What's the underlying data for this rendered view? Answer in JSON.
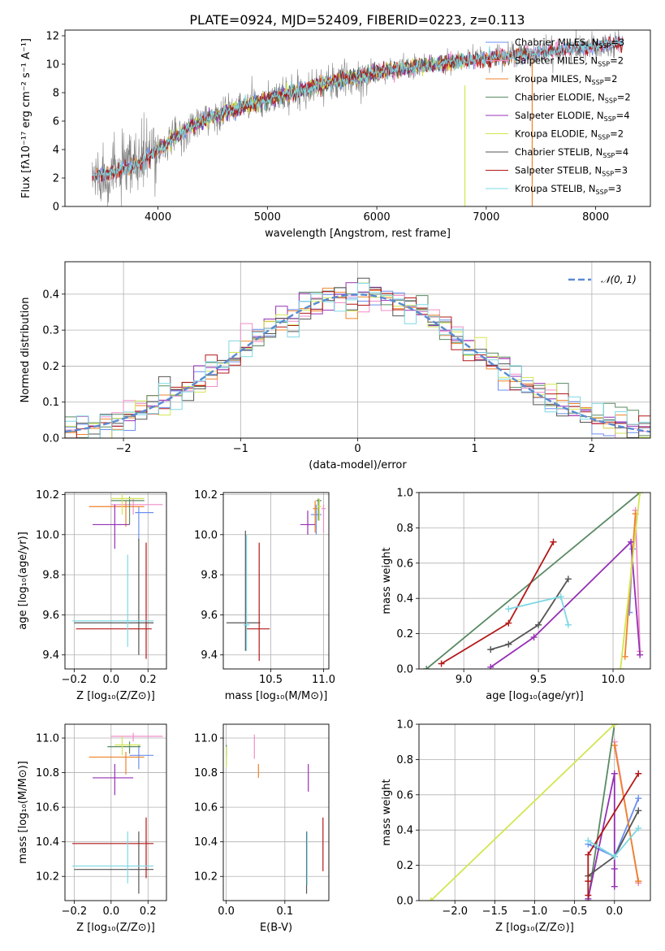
{
  "figure": {
    "title": "PLATE=0924, MJD=52409, FIBERID=0223, z=0.113"
  },
  "colors": {
    "Chabrier MILES": "#6a8ff0",
    "Salpeter MILES": "#f08cc8",
    "Kroupa MILES": "#f08228",
    "Chabrier ELODIE": "#5a8a64",
    "Salpeter ELODIE": "#9630b4",
    "Kroupa ELODIE": "#d2e650",
    "Chabrier STELIB": "#555555",
    "Salpeter STELIB": "#b41818",
    "Kroupa STELIB": "#7ed8e4",
    "data": "#808080",
    "normal": "#5a8ad2",
    "grid": "#b0b0b0"
  },
  "chart_data": [
    {
      "id": "spectrum",
      "type": "line",
      "title": "PLATE=0924, MJD=52409, FIBERID=0223, z=0.113",
      "xlabel": "wavelength [Angstrom, rest frame]",
      "ylabel": "Flux [fλ10⁻¹⁷ erg cm⁻² s⁻¹ A⁻¹]",
      "xlim": [
        3150,
        8500
      ],
      "ylim": [
        0,
        12.4
      ],
      "xticks": [
        4000,
        5000,
        6000,
        7000,
        8000
      ],
      "yticks": [
        0,
        2,
        4,
        6,
        8,
        10,
        12
      ],
      "grid": false,
      "legend_position": "right",
      "continuum_knots": {
        "x": [
          3400,
          3600,
          3800,
          4000,
          4300,
          4600,
          5000,
          5500,
          6000,
          6500,
          7000,
          7500,
          8000,
          8300
        ],
        "y": [
          2.1,
          2.4,
          2.9,
          4.0,
          5.6,
          6.6,
          7.5,
          8.6,
          9.4,
          10.0,
          10.4,
          10.8,
          11.3,
          11.6
        ]
      },
      "series": [
        {
          "name": "Chabrier MILES, N_SSP=3",
          "label": "Chabrier MILES, N",
          "sub": "SSP",
          "suffix": "=3",
          "color_key": "Chabrier MILES",
          "x_range": [
            3400,
            8250
          ]
        },
        {
          "name": "Salpeter MILES, N_SSP=2",
          "label": "Salpeter MILES, N",
          "sub": "SSP",
          "suffix": "=2",
          "color_key": "Salpeter MILES",
          "x_range": [
            3400,
            8250
          ]
        },
        {
          "name": "Kroupa MILES, N_SSP=2",
          "label": "Kroupa MILES, N",
          "sub": "SSP",
          "suffix": "=2",
          "color_key": "Kroupa MILES",
          "x_range": [
            3400,
            7420
          ]
        },
        {
          "name": "Chabrier ELODIE, N_SSP=2",
          "label": "Chabrier ELODIE, N",
          "sub": "SSP",
          "suffix": "=2",
          "color_key": "Chabrier ELODIE",
          "x_range": [
            4000,
            6800
          ]
        },
        {
          "name": "Salpeter ELODIE, N_SSP=4",
          "label": "Salpeter ELODIE, N",
          "sub": "SSP",
          "suffix": "=4",
          "color_key": "Salpeter ELODIE",
          "x_range": [
            4000,
            6800
          ]
        },
        {
          "name": "Kroupa ELODIE, N_SSP=2",
          "label": "Kroupa ELODIE, N",
          "sub": "SSP",
          "suffix": "=2",
          "color_key": "Kroupa ELODIE",
          "x_range": [
            4000,
            6800
          ]
        },
        {
          "name": "Chabrier STELIB, N_SSP=4",
          "label": "Chabrier STELIB, N",
          "sub": "SSP",
          "suffix": "=4",
          "color_key": "Chabrier STELIB",
          "x_range": [
            3400,
            8250
          ]
        },
        {
          "name": "Salpeter STELIB, N_SSP=3",
          "label": "Salpeter STELIB, N",
          "sub": "SSP",
          "suffix": "=3",
          "color_key": "Salpeter STELIB",
          "x_range": [
            3400,
            8250
          ]
        },
        {
          "name": "Kroupa STELIB, N_SSP=3",
          "label": "Kroupa STELIB, N",
          "sub": "SSP",
          "suffix": "=3",
          "color_key": "Kroupa STELIB",
          "x_range": [
            3400,
            8250
          ]
        }
      ]
    },
    {
      "id": "residuals",
      "type": "line",
      "xlabel": "(data-model)/error",
      "ylabel": "Normed distribution",
      "xlim": [
        -2.5,
        2.5
      ],
      "ylim": [
        0,
        0.49
      ],
      "xticks": [
        -2,
        -1,
        0,
        1,
        2
      ],
      "yticks": [
        0.0,
        0.1,
        0.2,
        0.3,
        0.4
      ],
      "grid": true,
      "legend_position": "top-right",
      "legend_label": "𝒩(0, 1)",
      "series_note": "nine step histograms, one per model, bin width 0.1"
    },
    {
      "id": "age-vs-z",
      "type": "scatter",
      "xlabel": "Z [log₁₀(Z/Z⊙)]",
      "ylabel": "age  [log₁₀(age/yr)]",
      "xlim": [
        -0.25,
        0.3
      ],
      "ylim": [
        9.33,
        10.21
      ],
      "xticks": [
        -0.2,
        0.0,
        0.2
      ],
      "yticks": [
        9.4,
        9.6,
        9.8,
        10.0,
        10.2
      ],
      "grid": true,
      "points": [
        {
          "model": "Chabrier MILES",
          "x": 0.15,
          "xerr": [
            0.02,
            0.08
          ],
          "y": 10.11,
          "yerr": [
            0.14,
            0.03
          ]
        },
        {
          "model": "Salpeter MILES",
          "x": 0.12,
          "xerr": [
            0.12,
            0.16
          ],
          "y": 10.15,
          "yerr": [
            0.05,
            0.03
          ]
        },
        {
          "model": "Kroupa MILES",
          "x": 0.08,
          "xerr": [
            0.2,
            0.1
          ],
          "y": 10.14,
          "yerr": [
            0.1,
            0.03
          ]
        },
        {
          "model": "Chabrier ELODIE",
          "x": 0.1,
          "xerr": [
            0.1,
            0.08
          ],
          "y": 10.17,
          "yerr": [
            0.12,
            0.02
          ]
        },
        {
          "model": "Salpeter ELODIE",
          "x": 0.02,
          "xerr": [
            0.12,
            0.08
          ],
          "y": 10.05,
          "yerr": [
            0.12,
            0.1
          ]
        },
        {
          "model": "Kroupa ELODIE",
          "x": 0.06,
          "xerr": [
            0.06,
            0.12
          ],
          "y": 10.18,
          "yerr": [
            0.08,
            0.02
          ]
        },
        {
          "model": "Chabrier STELIB",
          "x": 0.15,
          "xerr": [
            0.35,
            0.08
          ],
          "y": 9.56,
          "yerr": [
            0.16,
            0.42
          ]
        },
        {
          "model": "Salpeter STELIB",
          "x": 0.19,
          "xerr": [
            0.38,
            0.03
          ],
          "y": 9.53,
          "yerr": [
            0.15,
            0.43
          ]
        },
        {
          "model": "Kroupa STELIB",
          "x": 0.09,
          "xerr": [
            0.3,
            0.14
          ],
          "y": 9.57,
          "yerr": [
            0.13,
            0.33
          ]
        }
      ]
    },
    {
      "id": "age-vs-mass",
      "type": "scatter",
      "xlabel": "mass [log₁₀(M/M⊙)]",
      "ylabel": "",
      "xlim": [
        10.05,
        11.05
      ],
      "ylim": [
        9.33,
        10.21
      ],
      "xticks": [
        10.5,
        11.0
      ],
      "yticks": [
        9.4,
        9.6,
        9.8,
        10.0,
        10.2
      ],
      "grid": true,
      "points": [
        {
          "model": "Chabrier MILES",
          "x": 10.93,
          "xerr": [
            0.05,
            0.05
          ],
          "y": 10.1,
          "yerr": [
            0.1,
            0.05
          ]
        },
        {
          "model": "Salpeter MILES",
          "x": 11.0,
          "xerr": [
            0.02,
            0.02
          ],
          "y": 10.13,
          "yerr": [
            0.12,
            0.02
          ]
        },
        {
          "model": "Kroupa MILES",
          "x": 10.92,
          "xerr": [
            0.02,
            0.02
          ],
          "y": 10.13,
          "yerr": [
            0.12,
            0.04
          ]
        },
        {
          "model": "Chabrier ELODIE",
          "x": 10.95,
          "xerr": [
            0.02,
            0.03
          ],
          "y": 10.17,
          "yerr": [
            0.1,
            0.01
          ]
        },
        {
          "model": "Salpeter ELODIE",
          "x": 10.85,
          "xerr": [
            0.07,
            0.07
          ],
          "y": 10.05,
          "yerr": [
            0.05,
            0.07
          ]
        },
        {
          "model": "Kroupa ELODIE",
          "x": 10.96,
          "xerr": [
            0.02,
            0.02
          ],
          "y": 10.14,
          "yerr": [
            0.07,
            0.04
          ]
        },
        {
          "model": "Chabrier STELIB",
          "x": 10.26,
          "xerr": [
            0.18,
            0.14
          ],
          "y": 9.56,
          "yerr": [
            0.14,
            0.46
          ]
        },
        {
          "model": "Salpeter STELIB",
          "x": 10.39,
          "xerr": [
            0.12,
            0.1
          ],
          "y": 9.53,
          "yerr": [
            0.16,
            0.43
          ]
        },
        {
          "model": "Kroupa STELIB",
          "x": 10.27,
          "xerr": [
            0.03,
            0.03
          ],
          "y": 9.55,
          "yerr": [
            0.13,
            0.45
          ]
        }
      ]
    },
    {
      "id": "mass-weight-vs-age",
      "type": "line",
      "xlabel": "age  [log₁₀(age/yr)]",
      "ylabel": "mass weight",
      "xlim": [
        8.7,
        10.25
      ],
      "ylim": [
        0,
        1
      ],
      "xticks": [
        9.0,
        9.5,
        10.0
      ],
      "yticks": [
        0.0,
        0.2,
        0.4,
        0.6,
        0.8,
        1.0
      ],
      "grid": true,
      "series": [
        {
          "model": "Chabrier MILES",
          "x": [
            10.11,
            10.13
          ],
          "y": [
            0.32,
            0.68
          ]
        },
        {
          "model": "Salpeter MILES",
          "x": [
            10.15,
            10.18
          ],
          "y": [
            0.9,
            0.1
          ]
        },
        {
          "model": "Kroupa MILES",
          "x": [
            10.08,
            10.15
          ],
          "y": [
            0.07,
            0.88
          ]
        },
        {
          "model": "Chabrier ELODIE",
          "x": [
            8.75,
            10.18
          ],
          "y": [
            0.0,
            1.0
          ]
        },
        {
          "model": "Salpeter ELODIE",
          "x": [
            9.18,
            9.47,
            10.12,
            10.18
          ],
          "y": [
            0.01,
            0.18,
            0.72,
            0.08
          ]
        },
        {
          "model": "Kroupa ELODIE",
          "x": [
            10.05,
            10.18
          ],
          "y": [
            0.0,
            1.0
          ]
        },
        {
          "model": "Chabrier STELIB",
          "x": [
            9.18,
            9.3,
            9.5,
            9.7
          ],
          "y": [
            0.11,
            0.14,
            0.25,
            0.51
          ]
        },
        {
          "model": "Salpeter STELIB",
          "x": [
            8.85,
            9.3,
            9.6
          ],
          "y": [
            0.03,
            0.26,
            0.72
          ]
        },
        {
          "model": "Kroupa STELIB",
          "x": [
            9.3,
            9.65,
            9.7
          ],
          "y": [
            0.34,
            0.41,
            0.25
          ]
        }
      ]
    },
    {
      "id": "mass-vs-z",
      "type": "scatter",
      "xlabel": "Z [log₁₀(Z/Z⊙)]",
      "ylabel": "mass [log₁₀(M/M⊙)]",
      "xlim": [
        -0.25,
        0.3
      ],
      "ylim": [
        10.06,
        11.08
      ],
      "xticks": [
        -0.2,
        0.0,
        0.2
      ],
      "yticks": [
        10.2,
        10.4,
        10.6,
        10.8,
        11.0
      ],
      "grid": true,
      "points": [
        {
          "model": "Chabrier MILES",
          "x": 0.15,
          "xerr": [
            0.05,
            0.08
          ],
          "y": 10.9,
          "yerr": [
            0.08,
            0.06
          ]
        },
        {
          "model": "Salpeter MILES",
          "x": 0.12,
          "xerr": [
            0.12,
            0.16
          ],
          "y": 11.01,
          "yerr": [
            0.03,
            0.02
          ]
        },
        {
          "model": "Kroupa MILES",
          "x": 0.08,
          "xerr": [
            0.2,
            0.1
          ],
          "y": 10.89,
          "yerr": [
            0.1,
            0.03
          ]
        },
        {
          "model": "Chabrier ELODIE",
          "x": 0.1,
          "xerr": [
            0.12,
            0.06
          ],
          "y": 10.95,
          "yerr": [
            0.04,
            0.03
          ]
        },
        {
          "model": "Salpeter ELODIE",
          "x": 0.02,
          "xerr": [
            0.12,
            0.1
          ],
          "y": 10.77,
          "yerr": [
            0.1,
            0.08
          ]
        },
        {
          "model": "Kroupa ELODIE",
          "x": 0.06,
          "xerr": [
            0.04,
            0.1
          ],
          "y": 10.96,
          "yerr": [
            0.06,
            0.05
          ]
        },
        {
          "model": "Chabrier STELIB",
          "x": 0.15,
          "xerr": [
            0.35,
            0.08
          ],
          "y": 10.24,
          "yerr": [
            0.14,
            0.22
          ]
        },
        {
          "model": "Salpeter STELIB",
          "x": 0.19,
          "xerr": [
            0.4,
            0.04
          ],
          "y": 10.39,
          "yerr": [
            0.2,
            0.15
          ]
        },
        {
          "model": "Kroupa STELIB",
          "x": 0.09,
          "xerr": [
            0.3,
            0.14
          ],
          "y": 10.26,
          "yerr": [
            0.1,
            0.2
          ]
        }
      ]
    },
    {
      "id": "mass-vs-ebv",
      "type": "scatter",
      "xlabel": "E(B-V)",
      "ylabel": "",
      "xlim": [
        -0.005,
        0.175
      ],
      "ylim": [
        10.06,
        11.08
      ],
      "xticks": [
        0.0,
        0.1
      ],
      "yticks": [
        10.2,
        10.4,
        10.6,
        10.8,
        11.0
      ],
      "grid": true,
      "points": [
        {
          "model": "Chabrier MILES",
          "x": 0.0,
          "y": 10.9,
          "yerr": [
            0.06,
            0.06
          ]
        },
        {
          "model": "Salpeter MILES",
          "x": 0.048,
          "y": 10.96,
          "yerr": [
            0.08,
            0.06
          ]
        },
        {
          "model": "Kroupa MILES",
          "x": 0.055,
          "y": 10.83,
          "yerr": [
            0.06,
            0.02
          ]
        },
        {
          "model": "Chabrier ELODIE",
          "x": 0.0,
          "y": 10.93,
          "yerr": [
            0.04,
            0.03
          ]
        },
        {
          "model": "Salpeter ELODIE",
          "x": 0.14,
          "y": 10.77,
          "yerr": [
            0.08,
            0.08
          ]
        },
        {
          "model": "Kroupa ELODIE",
          "x": 0.0,
          "y": 10.89,
          "yerr": [
            0.06,
            0.06
          ]
        },
        {
          "model": "Chabrier STELIB",
          "x": 0.137,
          "y": 10.3,
          "yerr": [
            0.2,
            0.16
          ]
        },
        {
          "model": "Salpeter STELIB",
          "x": 0.165,
          "y": 10.38,
          "yerr": [
            0.15,
            0.16
          ]
        },
        {
          "model": "Kroupa STELIB",
          "x": 0.138,
          "y": 10.31,
          "yerr": [
            0.16,
            0.15
          ]
        }
      ]
    },
    {
      "id": "mass-weight-vs-z",
      "type": "line",
      "xlabel": "Z [log₁₀(Z/Z⊙)]",
      "ylabel": "mass weight",
      "xlim": [
        -2.45,
        0.45
      ],
      "ylim": [
        0,
        1
      ],
      "xticks": [
        -2.0,
        -1.5,
        -1.0,
        -0.5,
        0.0
      ],
      "yticks": [
        0.0,
        0.2,
        0.4,
        0.6,
        0.8,
        1.0
      ],
      "grid": true,
      "series": [
        {
          "model": "Chabrier MILES",
          "x": [
            -0.33,
            0.0,
            0.3
          ],
          "y": [
            0.32,
            0.25,
            0.58
          ]
        },
        {
          "model": "Salpeter MILES",
          "x": [
            0.0,
            0.3
          ],
          "y": [
            0.9,
            0.1
          ]
        },
        {
          "model": "Kroupa MILES",
          "x": [
            0.0,
            0.3
          ],
          "y": [
            0.88,
            0.11
          ]
        },
        {
          "model": "Chabrier ELODIE",
          "x": [
            -0.33,
            0.0
          ],
          "y": [
            0.0,
            1.0
          ]
        },
        {
          "model": "Salpeter ELODIE",
          "x": [
            -0.33,
            0.0,
            0.0,
            0.0
          ],
          "y": [
            0.01,
            0.72,
            0.18,
            0.08
          ]
        },
        {
          "model": "Kroupa ELODIE",
          "x": [
            -2.3,
            0.0
          ],
          "y": [
            0.0,
            1.0
          ]
        },
        {
          "model": "Chabrier STELIB",
          "x": [
            -0.33,
            0.0,
            0.3
          ],
          "y": [
            0.14,
            0.25,
            0.51
          ]
        },
        {
          "model": "Salpeter STELIB",
          "x": [
            -0.33,
            -0.33,
            -0.33,
            0.3
          ],
          "y": [
            0.03,
            0.11,
            0.26,
            0.72
          ]
        },
        {
          "model": "Kroupa STELIB",
          "x": [
            -0.33,
            0.0,
            0.3
          ],
          "y": [
            0.34,
            0.25,
            0.41
          ]
        }
      ]
    }
  ]
}
